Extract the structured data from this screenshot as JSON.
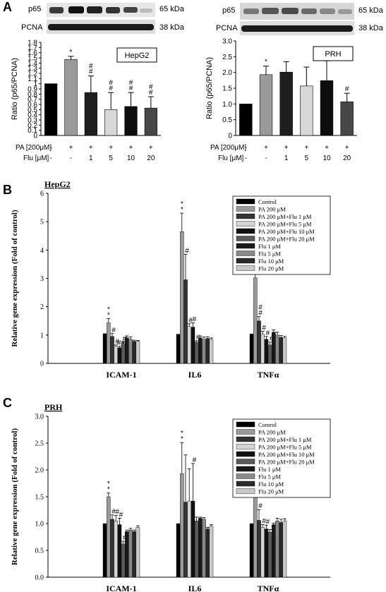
{
  "panels": {
    "A": "A",
    "B": "B",
    "C": "C"
  },
  "blots": {
    "hepg2": {
      "p65_label": "p65",
      "p65_kda": "65 kDa",
      "pcna_label": "PCNA",
      "pcna_kda": "38 kDa"
    },
    "prh": {
      "p65_label": "p65",
      "p65_kda": "65 kDa",
      "pcna_label": "PCNA",
      "pcna_kda": "38 kDa"
    }
  },
  "treatment_rows": {
    "pa_label": "PA [200μM]",
    "flu_label": "Flu [μM]",
    "pa_values": [
      "-",
      "+",
      "+",
      "+",
      "+",
      "+"
    ],
    "flu_values": [
      "-",
      "-",
      "1",
      "5",
      "10",
      "20"
    ]
  },
  "chart_data": [
    {
      "id": "A-hepg2",
      "type": "bar",
      "legend": "HepG2",
      "ylabel": "Ratio (p65/PCNA)",
      "ylim": [
        0,
        1.8
      ],
      "yticks": [
        "0",
        "0.1",
        "0.2",
        "0.3",
        "0.4",
        "0.5",
        "0.6",
        "0.7",
        "0.8",
        "0.9",
        "1",
        "1.1",
        "1.2",
        "1.3",
        "1.4",
        "1.5",
        "1.6",
        "1.7",
        "1.8"
      ],
      "values": [
        1.0,
        1.47,
        0.83,
        0.5,
        0.56,
        0.53
      ],
      "errors": [
        0,
        0.06,
        0.32,
        0.33,
        0.27,
        0.22
      ],
      "colors": [
        "#000000",
        "#9a9a9a",
        "#1e1e1e",
        "#d8d8d8",
        "#0d0d0d",
        "#474747"
      ],
      "significance": [
        "",
        "*",
        "#\n#",
        "#\n#",
        "#\n#",
        "#\n#"
      ]
    },
    {
      "id": "A-prh",
      "type": "bar",
      "legend": "PRH",
      "ylabel": "Ratio (p65/PCNA)",
      "ylim": [
        0,
        3.0
      ],
      "yticks": [
        "0",
        "0.5",
        "1.0",
        "1.5",
        "2.0",
        "2.5",
        "3.0"
      ],
      "values": [
        1.0,
        1.93,
        2.01,
        1.57,
        1.74,
        1.07
      ],
      "errors": [
        0,
        0.27,
        0.33,
        0.6,
        0.63,
        0.27
      ],
      "colors": [
        "#000000",
        "#9a9a9a",
        "#1e1e1e",
        "#d8d8d8",
        "#0d0d0d",
        "#474747"
      ],
      "significance": [
        "",
        "*",
        "",
        "",
        "",
        "#"
      ]
    },
    {
      "id": "B",
      "type": "bar",
      "title": "HepG2",
      "ylabel": "Relative gene expression (Fold of control)",
      "ylim": [
        0,
        6
      ],
      "yticks": [
        "0",
        "1",
        "2",
        "3",
        "4",
        "5",
        "6"
      ],
      "categories": [
        "ICAM-1",
        "IL6",
        "TNFα"
      ],
      "series": [
        {
          "name": "Control",
          "color": "#000000",
          "values": [
            1.05,
            1.03,
            1.04
          ],
          "errors": [
            0,
            0,
            0
          ]
        },
        {
          "name": "PA 200 μM",
          "color": "#9a9a9a",
          "values": [
            1.43,
            4.65,
            3.02
          ],
          "errors": [
            0.15,
            0.65,
            0.7
          ]
        },
        {
          "name": "PA 200 μM+Flu 1 μM",
          "color": "#333333",
          "values": [
            0.95,
            2.95,
            1.5
          ],
          "errors": [
            0.1,
            0.9,
            0.15
          ]
        },
        {
          "name": "PA 200 μM+Flu 5 μM",
          "color": "#d4d4d4",
          "values": [
            0.6,
            1.3,
            1.03
          ],
          "errors": [
            0.05,
            0.1,
            0.1
          ]
        },
        {
          "name": "PA 200 μM+Flu 10 μM",
          "color": "#111111",
          "values": [
            0.55,
            1.28,
            0.85
          ],
          "errors": [
            0.05,
            0.15,
            0.1
          ]
        },
        {
          "name": "PA 200 μM+Flu 20 μM",
          "color": "#5a5a5a",
          "values": [
            0.7,
            0.75,
            0.65
          ],
          "errors": [
            0.05,
            0.05,
            0.1
          ]
        },
        {
          "name": "Flu 1 μM",
          "color": "#1a1a1a",
          "values": [
            0.9,
            0.9,
            1.1
          ],
          "errors": [
            0.07,
            0.07,
            0.08
          ]
        },
        {
          "name": "Flu 5 μM",
          "color": "#8a8a8a",
          "values": [
            0.85,
            0.85,
            1.0
          ],
          "errors": [
            0.08,
            0.08,
            0.1
          ]
        },
        {
          "name": "Flu 10 μM",
          "color": "#2a2a2a",
          "values": [
            0.78,
            0.88,
            0.92
          ],
          "errors": [
            0.04,
            0.06,
            0.06
          ]
        },
        {
          "name": "Flu 20 μM",
          "color": "#c8c8c8",
          "values": [
            0.78,
            0.85,
            0.9
          ],
          "errors": [
            0.03,
            0.05,
            0.05
          ]
        }
      ],
      "significance": [
        [
          "",
          "*\n*",
          "#",
          "#",
          "##",
          "#",
          "",
          "",
          "",
          ""
        ],
        [
          "",
          "*\n*",
          "#",
          "#",
          "#",
          "#",
          "",
          "",
          "",
          ""
        ],
        [
          "",
          "*\n*",
          "#\n#",
          "#",
          "#",
          "#",
          "",
          "",
          "",
          ""
        ]
      ]
    },
    {
      "id": "C",
      "type": "bar",
      "title": "PRH",
      "ylabel": "Relative gene expression (Fold of control)",
      "ylim": [
        0,
        3.0
      ],
      "yticks": [
        "0.0",
        "0.5",
        "1.0",
        "1.5",
        "2.0",
        "2.5",
        "3.0"
      ],
      "categories": [
        "ICAM-1",
        "IL6",
        "TNFα"
      ],
      "series": [
        {
          "name": "Control",
          "color": "#000000",
          "values": [
            1.0,
            1.0,
            1.0
          ],
          "errors": [
            0,
            0,
            0
          ]
        },
        {
          "name": "PA 200 μM",
          "color": "#9a9a9a",
          "values": [
            1.5,
            1.93,
            1.53
          ],
          "errors": [
            0.07,
            0.58,
            0.12
          ]
        },
        {
          "name": "PA 200 μM+Flu 1 μM",
          "color": "#333333",
          "values": [
            1.08,
            1.4,
            1.06
          ],
          "errors": [
            0.08,
            0.88,
            0.2
          ]
        },
        {
          "name": "PA 200 μM+Flu 5 μM",
          "color": "#d4d4d4",
          "values": [
            1.05,
            1.42,
            0.93
          ],
          "errors": [
            0.1,
            0.6,
            0.05
          ]
        },
        {
          "name": "PA 200 μM+Flu 10 μM",
          "color": "#111111",
          "values": [
            0.98,
            1.42,
            0.9
          ],
          "errors": [
            0.12,
            0.7,
            0.07
          ]
        },
        {
          "name": "PA 200 μM+Flu 20 μM",
          "color": "#5a5a5a",
          "values": [
            0.62,
            1.05,
            0.84
          ],
          "errors": [
            0.05,
            0.07,
            0.05
          ]
        },
        {
          "name": "Flu 1 μM",
          "color": "#1a1a1a",
          "values": [
            0.85,
            1.1,
            0.98
          ],
          "errors": [
            0.03,
            0.02,
            0.03
          ]
        },
        {
          "name": "Flu 5 μM",
          "color": "#8a8a8a",
          "values": [
            0.88,
            1.08,
            1.05
          ],
          "errors": [
            0.03,
            0.03,
            0.05
          ]
        },
        {
          "name": "Flu 10 μM",
          "color": "#2a2a2a",
          "values": [
            0.85,
            0.9,
            1.02
          ],
          "errors": [
            0.03,
            0.03,
            0.06
          ]
        },
        {
          "name": "Flu 20 μM",
          "color": "#c8c8c8",
          "values": [
            0.93,
            0.95,
            1.05
          ],
          "errors": [
            0.03,
            0.03,
            0.04
          ]
        }
      ],
      "significance": [
        [
          "",
          "*\n*",
          "#",
          "#",
          "#",
          "#",
          "",
          "",
          "",
          ""
        ],
        [
          "",
          "*\n*",
          "",
          "",
          "#",
          "",
          "",
          "",
          "",
          ""
        ],
        [
          "",
          "*\n*",
          "#",
          "#",
          "#",
          "",
          "",
          "",
          "",
          ""
        ]
      ]
    }
  ]
}
